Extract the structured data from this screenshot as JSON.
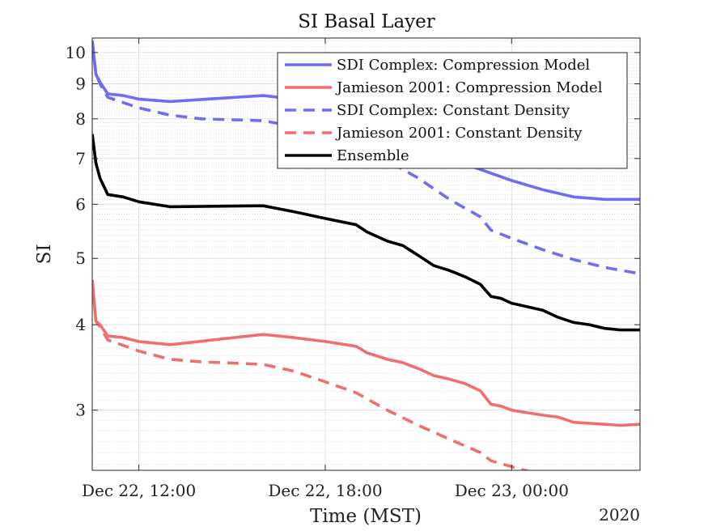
{
  "chart_data": {
    "type": "line",
    "title": "SI Basal Layer",
    "xlabel": "Time (MST)",
    "ylabel": "SI",
    "year_label": "2020",
    "y_scale": "log",
    "ylim": [
      2.45,
      10.5
    ],
    "xlim": [
      "Dec 22, 10:30",
      "Dec 23, 04:08"
    ],
    "x_ticks": [
      {
        "t": "Dec 22, 12:00",
        "label": "Dec 22, 12:00"
      },
      {
        "t": "Dec 22, 18:00",
        "label": "Dec 22, 18:00"
      },
      {
        "t": "Dec 23, 00:00",
        "label": "Dec 23, 00:00"
      }
    ],
    "y_ticks": [
      {
        "value": 3,
        "label": "3"
      },
      {
        "value": 4,
        "label": "4"
      },
      {
        "value": 5,
        "label": "5"
      },
      {
        "value": 6,
        "label": "6"
      },
      {
        "value": 7,
        "label": "7"
      },
      {
        "value": 8,
        "label": "8"
      },
      {
        "value": 9,
        "label": "9"
      },
      {
        "value": 10,
        "label": "10"
      }
    ],
    "grid": true,
    "minor_grid": true,
    "legend_position": "top-right",
    "series": [
      {
        "name": "SDI Complex: Compression Model",
        "color": "#6e6ef5",
        "style": "solid",
        "points": [
          [
            "Dec 22, 10:30",
            10.4
          ],
          [
            "Dec 22, 10:37",
            9.3
          ],
          [
            "Dec 22, 10:45",
            9.05
          ],
          [
            "Dec 22, 11:00",
            8.7
          ],
          [
            "Dec 22, 11:30",
            8.65
          ],
          [
            "Dec 22, 12:00",
            8.55
          ],
          [
            "Dec 22, 13:00",
            8.48
          ],
          [
            "Dec 22, 16:00",
            8.65
          ],
          [
            "Dec 22, 17:00",
            8.55
          ],
          [
            "Dec 22, 18:00",
            8.4
          ],
          [
            "Dec 22, 19:00",
            8.1
          ],
          [
            "Dec 22, 20:00",
            7.8
          ],
          [
            "Dec 22, 21:00",
            7.4
          ],
          [
            "Dec 22, 22:00",
            7.0
          ],
          [
            "Dec 23, 00:00",
            6.5
          ],
          [
            "Dec 23, 01:00",
            6.3
          ],
          [
            "Dec 23, 02:00",
            6.15
          ],
          [
            "Dec 23, 03:00",
            6.1
          ],
          [
            "Dec 23, 04:08",
            6.1
          ]
        ]
      },
      {
        "name": "Jamieson 2001: Compression Model",
        "color": "#f06e6e",
        "style": "solid",
        "points": [
          [
            "Dec 22, 10:30",
            4.65
          ],
          [
            "Dec 22, 10:37",
            4.05
          ],
          [
            "Dec 22, 10:45",
            4.0
          ],
          [
            "Dec 22, 11:00",
            3.85
          ],
          [
            "Dec 22, 11:30",
            3.83
          ],
          [
            "Dec 22, 12:00",
            3.78
          ],
          [
            "Dec 22, 13:00",
            3.74
          ],
          [
            "Dec 22, 16:00",
            3.87
          ],
          [
            "Dec 22, 17:00",
            3.83
          ],
          [
            "Dec 22, 18:00",
            3.78
          ],
          [
            "Dec 22, 19:00",
            3.72
          ],
          [
            "Dec 22, 19:20",
            3.64
          ],
          [
            "Dec 22, 20:00",
            3.56
          ],
          [
            "Dec 22, 20:30",
            3.52
          ],
          [
            "Dec 22, 21:00",
            3.45
          ],
          [
            "Dec 22, 21:30",
            3.37
          ],
          [
            "Dec 22, 22:00",
            3.33
          ],
          [
            "Dec 22, 22:30",
            3.28
          ],
          [
            "Dec 22, 23:00",
            3.2
          ],
          [
            "Dec 22, 23:20",
            3.06
          ],
          [
            "Dec 22, 23:40",
            3.04
          ],
          [
            "Dec 23, 00:00",
            3.0
          ],
          [
            "Dec 23, 01:00",
            2.95
          ],
          [
            "Dec 23, 01:30",
            2.93
          ],
          [
            "Dec 23, 02:00",
            2.88
          ],
          [
            "Dec 23, 02:30",
            2.87
          ],
          [
            "Dec 23, 03:00",
            2.86
          ],
          [
            "Dec 23, 03:30",
            2.85
          ],
          [
            "Dec 23, 04:08",
            2.86
          ]
        ]
      },
      {
        "name": "SDI Complex: Constant Density",
        "color": "#6e6ef5",
        "style": "dashed",
        "points": [
          [
            "Dec 22, 10:30",
            10.4
          ],
          [
            "Dec 22, 10:37",
            9.3
          ],
          [
            "Dec 22, 10:45",
            9.0
          ],
          [
            "Dec 22, 11:00",
            8.6
          ],
          [
            "Dec 22, 12:00",
            8.3
          ],
          [
            "Dec 22, 13:00",
            8.1
          ],
          [
            "Dec 22, 14:00",
            8.0
          ],
          [
            "Dec 22, 16:00",
            7.95
          ],
          [
            "Dec 22, 17:00",
            7.8
          ],
          [
            "Dec 22, 18:00",
            7.55
          ],
          [
            "Dec 22, 19:00",
            7.25
          ],
          [
            "Dec 22, 20:00",
            6.95
          ],
          [
            "Dec 22, 21:00",
            6.55
          ],
          [
            "Dec 22, 22:00",
            6.1
          ],
          [
            "Dec 22, 23:00",
            5.75
          ],
          [
            "Dec 22, 23:20",
            5.5
          ],
          [
            "Dec 23, 00:00",
            5.35
          ],
          [
            "Dec 23, 01:00",
            5.15
          ],
          [
            "Dec 23, 02:00",
            4.98
          ],
          [
            "Dec 23, 03:00",
            4.85
          ],
          [
            "Dec 23, 04:08",
            4.75
          ]
        ]
      },
      {
        "name": "Jamieson 2001: Constant Density",
        "color": "#f06e6e",
        "style": "dashed",
        "points": [
          [
            "Dec 22, 10:30",
            4.65
          ],
          [
            "Dec 22, 10:37",
            4.05
          ],
          [
            "Dec 22, 10:45",
            3.97
          ],
          [
            "Dec 22, 11:00",
            3.8
          ],
          [
            "Dec 22, 12:00",
            3.66
          ],
          [
            "Dec 22, 13:00",
            3.56
          ],
          [
            "Dec 22, 14:00",
            3.53
          ],
          [
            "Dec 22, 16:00",
            3.5
          ],
          [
            "Dec 22, 17:00",
            3.42
          ],
          [
            "Dec 22, 18:00",
            3.3
          ],
          [
            "Dec 22, 19:00",
            3.18
          ],
          [
            "Dec 22, 20:00",
            3.0
          ],
          [
            "Dec 22, 21:00",
            2.85
          ],
          [
            "Dec 22, 22:00",
            2.72
          ],
          [
            "Dec 22, 23:00",
            2.6
          ],
          [
            "Dec 22, 23:20",
            2.53
          ],
          [
            "Dec 23, 00:00",
            2.48
          ],
          [
            "Dec 23, 01:00",
            2.41
          ],
          [
            "Dec 23, 02:00",
            2.35
          ],
          [
            "Dec 23, 03:00",
            2.32
          ],
          [
            "Dec 23, 04:08",
            2.3
          ]
        ]
      },
      {
        "name": "Ensemble",
        "color": "#000000",
        "style": "solid",
        "points": [
          [
            "Dec 22, 10:30",
            7.6
          ],
          [
            "Dec 22, 10:37",
            6.9
          ],
          [
            "Dec 22, 10:45",
            6.55
          ],
          [
            "Dec 22, 11:00",
            6.2
          ],
          [
            "Dec 22, 11:30",
            6.15
          ],
          [
            "Dec 22, 12:00",
            6.05
          ],
          [
            "Dec 22, 13:00",
            5.95
          ],
          [
            "Dec 22, 16:00",
            5.97
          ],
          [
            "Dec 22, 17:00",
            5.85
          ],
          [
            "Dec 22, 18:00",
            5.72
          ],
          [
            "Dec 22, 19:00",
            5.6
          ],
          [
            "Dec 22, 19:20",
            5.47
          ],
          [
            "Dec 22, 20:00",
            5.3
          ],
          [
            "Dec 22, 20:30",
            5.22
          ],
          [
            "Dec 22, 21:00",
            5.05
          ],
          [
            "Dec 22, 21:30",
            4.88
          ],
          [
            "Dec 22, 22:00",
            4.8
          ],
          [
            "Dec 22, 22:30",
            4.7
          ],
          [
            "Dec 22, 23:00",
            4.58
          ],
          [
            "Dec 22, 23:20",
            4.4
          ],
          [
            "Dec 22, 23:40",
            4.37
          ],
          [
            "Dec 23, 00:00",
            4.3
          ],
          [
            "Dec 23, 01:00",
            4.2
          ],
          [
            "Dec 23, 01:30",
            4.1
          ],
          [
            "Dec 23, 02:00",
            4.03
          ],
          [
            "Dec 23, 02:30",
            4.0
          ],
          [
            "Dec 23, 03:00",
            3.95
          ],
          [
            "Dec 23, 03:30",
            3.93
          ],
          [
            "Dec 23, 04:08",
            3.93
          ]
        ]
      }
    ]
  }
}
